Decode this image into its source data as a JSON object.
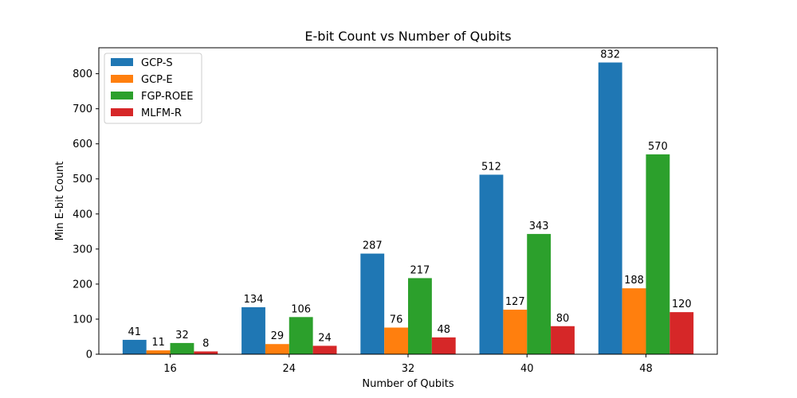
{
  "chart_data": {
    "type": "bar",
    "title": "E-bit Count vs Number of Qubits",
    "xlabel": "Number of Qubits",
    "ylabel": "Min E-bit Count",
    "categories": [
      "16",
      "24",
      "32",
      "40",
      "48"
    ],
    "ylim": [
      0,
      874
    ],
    "yticks": [
      0,
      100,
      200,
      300,
      400,
      500,
      600,
      700,
      800
    ],
    "grid": false,
    "legend_position": "top-left",
    "series": [
      {
        "name": "GCP-S",
        "color": "#1f77b4",
        "values": [
          41,
          134,
          287,
          512,
          832
        ]
      },
      {
        "name": "GCP-E",
        "color": "#ff7f0e",
        "values": [
          11,
          29,
          76,
          127,
          188
        ]
      },
      {
        "name": "FGP-ROEE",
        "color": "#2ca02c",
        "values": [
          32,
          106,
          217,
          343,
          570
        ]
      },
      {
        "name": "MLFM-R",
        "color": "#d62728",
        "values": [
          8,
          24,
          48,
          80,
          120
        ]
      }
    ]
  }
}
